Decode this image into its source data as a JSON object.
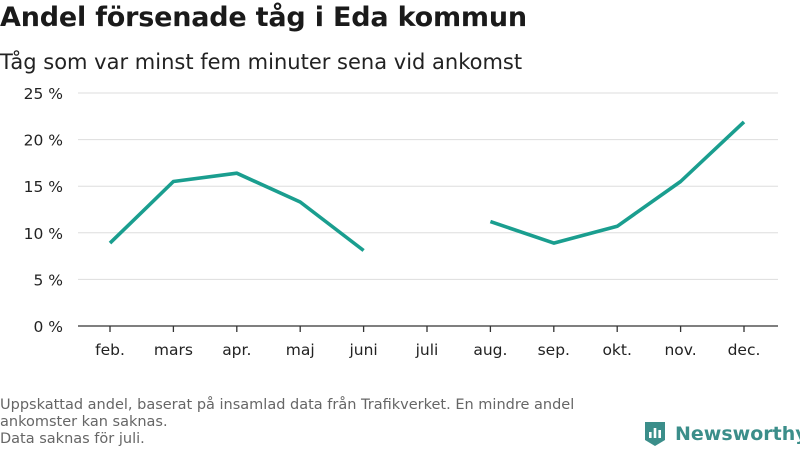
{
  "title": "Andel försenade tåg i Eda kommun",
  "subtitle": "Tåg som var minst fem minuter sena vid ankomst",
  "footnote": [
    "Uppskattad andel, baserat på insamlad data från Trafikverket. En mindre andel",
    "ankomster kan saknas.",
    "Data saknas för juli."
  ],
  "brand": {
    "name": "Newsworthy",
    "icon": "newsworthy-logo-icon",
    "color": "#3b8e8a"
  },
  "chart_data": {
    "type": "line",
    "title": "Andel försenade tåg i Eda kommun",
    "subtitle": "Tåg som var minst fem minuter sena vid ankomst",
    "categories": [
      "feb.",
      "mars",
      "apr.",
      "maj",
      "juni",
      "juli",
      "aug.",
      "sep.",
      "okt.",
      "nov.",
      "dec."
    ],
    "series": [
      {
        "values": [
          8.9,
          15.5,
          16.4,
          13.3,
          8.1,
          null,
          11.2,
          8.9,
          10.7,
          15.5,
          21.9
        ],
        "color": "#1a9e8f"
      }
    ],
    "ylim": [
      0,
      25
    ],
    "yticks": [
      0,
      5,
      10,
      15,
      20,
      25
    ],
    "ytick_labels": [
      "0 %",
      "5 %",
      "10 %",
      "15 %",
      "20 %",
      "25 %"
    ],
    "grid": true,
    "grid_color": "#dddddd",
    "axis_color": "#333333",
    "xlabel": "",
    "ylabel": ""
  }
}
